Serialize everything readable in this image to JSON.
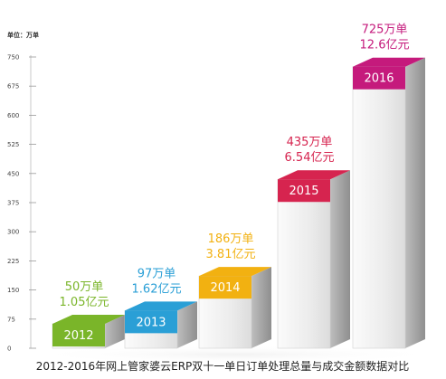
{
  "chart_data": {
    "type": "bar",
    "title": "2012-2016年网上管家婆云ERP双十一单日订单处理总量与成交金额数据对比",
    "unit_label": "单位：万单",
    "ylim": [
      0,
      750
    ],
    "yticks": [
      0,
      75,
      150,
      225,
      300,
      375,
      450,
      525,
      600,
      675,
      750
    ],
    "categories": [
      "2012",
      "2013",
      "2014",
      "2015",
      "2016"
    ],
    "values": [
      50,
      97,
      186,
      435,
      725
    ],
    "value_labels": [
      "50万单",
      "97万单",
      "186万单",
      "435万单",
      "725万单"
    ],
    "amount_labels": [
      "1.05亿元",
      "1.62亿元",
      "3.81亿元",
      "6.54亿元",
      "12.6亿元"
    ],
    "colors": [
      "#7ab529",
      "#2a9fd6",
      "#f2b111",
      "#d6244f",
      "#c51a7c"
    ]
  }
}
